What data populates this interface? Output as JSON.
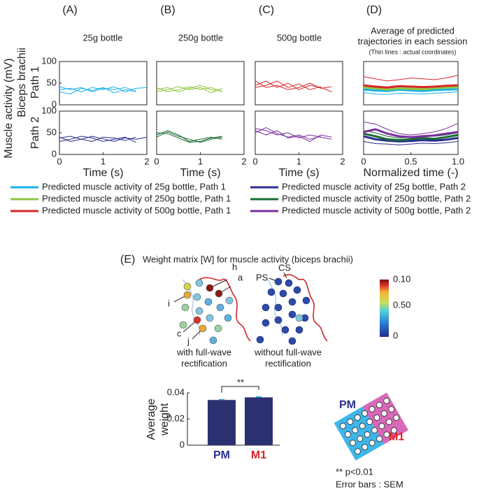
{
  "chart_data": [
    {
      "type": "line",
      "x": [
        0,
        0.25,
        0.5,
        0.75,
        1,
        1.25,
        1.5,
        1.75,
        2
      ],
      "xlim": [
        0,
        2
      ],
      "ylim": [
        0,
        100
      ],
      "yticks": [
        0,
        50,
        100
      ],
      "series": [
        {
          "color": "#1ab2e8",
          "width": 1,
          "values": [
            35,
            38,
            30,
            40,
            35,
            42,
            30,
            38,
            40
          ]
        },
        {
          "color": "#1ab2e8",
          "width": 1,
          "values": [
            30,
            25,
            38,
            33,
            40,
            28,
            35,
            30,
            null
          ]
        },
        {
          "color": "#1ab2e8",
          "width": 1,
          "values": [
            42,
            35,
            40,
            30,
            38,
            35,
            40,
            32,
            null
          ]
        }
      ]
    },
    {
      "type": "line",
      "x": [
        0,
        0.25,
        0.5,
        0.75,
        1,
        1.25,
        1.5,
        1.75,
        2
      ],
      "xlim": [
        0,
        2
      ],
      "ylim": [
        0,
        100
      ],
      "yticks": [
        0,
        50,
        100
      ],
      "xticks": [
        0,
        1,
        2
      ],
      "xlabel": "Time (s)",
      "series": [
        {
          "color": "#2b2f8f",
          "width": 1,
          "values": [
            38,
            42,
            35,
            30,
            40,
            38,
            32,
            40,
            null
          ]
        },
        {
          "color": "#2b2f8f",
          "width": 1,
          "values": [
            30,
            35,
            42,
            38,
            30,
            35,
            40,
            28,
            null
          ]
        },
        {
          "color": "#2b2f8f",
          "width": 1,
          "values": [
            40,
            30,
            35,
            42,
            36,
            30,
            38,
            35,
            40
          ]
        }
      ]
    },
    {
      "type": "line",
      "x": [
        0,
        0.25,
        0.5,
        0.75,
        1,
        1.25,
        1.5,
        1.75,
        2
      ],
      "xlim": [
        0,
        2
      ],
      "ylim": [
        0,
        100
      ],
      "series": [
        {
          "color": "#8dc63f",
          "width": 1,
          "values": [
            35,
            40,
            30,
            38,
            45,
            35,
            32,
            null,
            null
          ]
        },
        {
          "color": "#8dc63f",
          "width": 1,
          "values": [
            30,
            35,
            42,
            35,
            40,
            28,
            38,
            null,
            null
          ]
        },
        {
          "color": "#8dc63f",
          "width": 1,
          "values": [
            40,
            30,
            35,
            42,
            35,
            40,
            30,
            null,
            null
          ]
        }
      ]
    },
    {
      "type": "line",
      "x": [
        0,
        0.25,
        0.5,
        0.75,
        1,
        1.25,
        1.5,
        1.75,
        2
      ],
      "xlim": [
        0,
        2
      ],
      "ylim": [
        0,
        100
      ],
      "xticks": [
        0,
        1,
        2
      ],
      "xlabel": "Time (s)",
      "series": [
        {
          "color": "#1a6b35",
          "width": 1,
          "values": [
            45,
            55,
            45,
            30,
            35,
            40,
            35,
            null,
            null
          ]
        },
        {
          "color": "#1a6b35",
          "width": 1,
          "values": [
            50,
            48,
            38,
            28,
            30,
            38,
            42,
            null,
            null
          ]
        },
        {
          "color": "#1a6b35",
          "width": 1,
          "values": [
            40,
            52,
            42,
            35,
            28,
            35,
            40,
            null,
            null
          ]
        }
      ]
    },
    {
      "type": "line",
      "x": [
        0,
        0.25,
        0.5,
        0.75,
        1,
        1.25,
        1.5,
        1.75,
        2
      ],
      "xlim": [
        0,
        2
      ],
      "ylim": [
        0,
        100
      ],
      "series": [
        {
          "color": "#d62728",
          "width": 1,
          "values": [
            45,
            55,
            40,
            50,
            35,
            45,
            40,
            30,
            null
          ]
        },
        {
          "color": "#d62728",
          "width": 1,
          "values": [
            40,
            45,
            55,
            40,
            48,
            35,
            42,
            null,
            null
          ]
        },
        {
          "color": "#d62728",
          "width": 1,
          "values": [
            55,
            40,
            45,
            35,
            40,
            50,
            38,
            42,
            null
          ]
        }
      ]
    },
    {
      "type": "line",
      "x": [
        0,
        0.25,
        0.5,
        0.75,
        1,
        1.25,
        1.5,
        1.75,
        2
      ],
      "xlim": [
        0,
        2
      ],
      "ylim": [
        0,
        100
      ],
      "xticks": [
        0,
        1,
        2
      ],
      "xlabel": "Time (s)",
      "series": [
        {
          "color": "#7b2fa0",
          "width": 1,
          "values": [
            60,
            55,
            45,
            50,
            38,
            45,
            40,
            35,
            null
          ]
        },
        {
          "color": "#7b2fa0",
          "width": 1,
          "values": [
            50,
            62,
            48,
            40,
            45,
            35,
            42,
            null,
            null
          ]
        },
        {
          "color": "#7b2fa0",
          "width": 1,
          "values": [
            55,
            45,
            55,
            38,
            42,
            30,
            45,
            40,
            null
          ]
        }
      ]
    },
    {
      "type": "line",
      "x": [
        0,
        0.125,
        0.25,
        0.375,
        0.5,
        0.625,
        0.75,
        0.875,
        1
      ],
      "xlim": [
        0,
        1
      ],
      "ylim": [
        0,
        100
      ],
      "series": [
        {
          "color": "#1ab2e8",
          "width": 1,
          "values": [
            28,
            25,
            24,
            27,
            26,
            25,
            27,
            28,
            30
          ]
        },
        {
          "color": "#d62728",
          "width": 1,
          "values": [
            65,
            60,
            55,
            58,
            62,
            60,
            58,
            62,
            68
          ]
        },
        {
          "color": "#8dc63f",
          "width": 1,
          "values": [
            45,
            43,
            40,
            42,
            44,
            42,
            43,
            45,
            47
          ]
        },
        {
          "color": "#1ab2e8",
          "width": 3,
          "values": [
            35,
            33,
            32,
            35,
            33,
            32,
            34,
            35,
            36
          ]
        },
        {
          "color": "#8dc63f",
          "width": 3,
          "values": [
            40,
            38,
            35,
            38,
            37,
            36,
            38,
            40,
            41
          ]
        },
        {
          "color": "#d62728",
          "width": 3,
          "values": [
            45,
            42,
            40,
            43,
            42,
            41,
            42,
            44,
            45
          ]
        }
      ]
    },
    {
      "type": "line",
      "x": [
        0,
        0.125,
        0.25,
        0.375,
        0.5,
        0.625,
        0.75,
        0.875,
        1
      ],
      "xlim": [
        0,
        1
      ],
      "ylim": [
        0,
        100
      ],
      "xticks": [
        0,
        0.5,
        {
          "value": 1,
          "label": "1.0"
        }
      ],
      "xlabel": "Normalized time (-)",
      "series": [
        {
          "color": "#7b2fa0",
          "width": 1,
          "values": [
            75,
            70,
            58,
            48,
            45,
            48,
            52,
            60,
            72
          ]
        },
        {
          "color": "#2b2f8f",
          "width": 1,
          "values": [
            30,
            25,
            24,
            22,
            24,
            26,
            25,
            27,
            30
          ]
        },
        {
          "color": "#1a6b35",
          "width": 1,
          "values": [
            55,
            50,
            42,
            38,
            40,
            44,
            42,
            45,
            50
          ]
        },
        {
          "color": "#2b2f8f",
          "width": 3,
          "values": [
            42,
            35,
            32,
            30,
            31,
            33,
            32,
            34,
            38
          ]
        },
        {
          "color": "#1a6b35",
          "width": 3,
          "values": [
            48,
            42,
            35,
            33,
            35,
            38,
            36,
            40,
            45
          ]
        },
        {
          "color": "#7b2fa0",
          "width": 3,
          "values": [
            52,
            58,
            48,
            42,
            40,
            42,
            44,
            48,
            52
          ]
        }
      ]
    },
    {
      "type": "bar",
      "ylabel": [
        "Average",
        "weight"
      ],
      "categories": [
        "PM",
        "M1"
      ],
      "values": [
        0.0345,
        0.0365
      ],
      "errors": [
        0.0003,
        0.0004
      ],
      "color": "#2b3070",
      "error_color": "#29a8e0",
      "category_colors": [
        "#2b2f8f",
        "#d62728"
      ],
      "ylim": [
        0,
        0.04
      ],
      "yticks": [
        0,
        0.02,
        0.04
      ]
    }
  ],
  "figure": {
    "panel_labels": [
      "(A)",
      "(B)",
      "(C)",
      "(D)"
    ],
    "column_titles": [
      "25g bottle",
      "250g bottle",
      "500g bottle"
    ],
    "d_title": [
      "Average of predicted",
      "trajectories in each session"
    ],
    "d_note": "(Thin lines : actual coordinates)",
    "y_labels": [
      "Muscle activity (mV)",
      "Biceps brachii"
    ],
    "row_labels": [
      "Path 1",
      "Path 2"
    ],
    "legend": [
      {
        "label": "Predicted muscle activity of 25g bottle, Path 1",
        "color": "#1ab2e8"
      },
      {
        "label": "Predicted muscle activity of 250g bottle, Path 1",
        "color": "#8dc63f"
      },
      {
        "label": "Predicted muscle activity of 500g bottle, Path 1",
        "color": "#d62728"
      },
      {
        "label": "Predicted muscle activity of 25g bottle, Path 2",
        "color": "#2b2f8f"
      },
      {
        "label": "Predicted muscle activity of 250g bottle, Path 2",
        "color": "#1a6b35"
      },
      {
        "label": "Predicted muscle activity of 500g bottle, Path 2",
        "color": "#7b2fa0"
      }
    ],
    "e_label": "(E)",
    "e_title": "Weight matrix [W] for muscle activity (biceps brachii)",
    "diagram_labels": [
      "h",
      "a",
      "i",
      "c",
      "j",
      "PS",
      "CS"
    ],
    "captions": [
      [
        "with full-wave",
        "rectification"
      ],
      [
        "without full-wave",
        "rectification"
      ]
    ],
    "colorbar_labels": [
      "0.10",
      "0.50",
      "0"
    ],
    "electrode_labels": [
      "PM",
      "M1"
    ],
    "significance": "**",
    "notes": [
      "**  p<0.01",
      "Error bars : SEM"
    ]
  }
}
